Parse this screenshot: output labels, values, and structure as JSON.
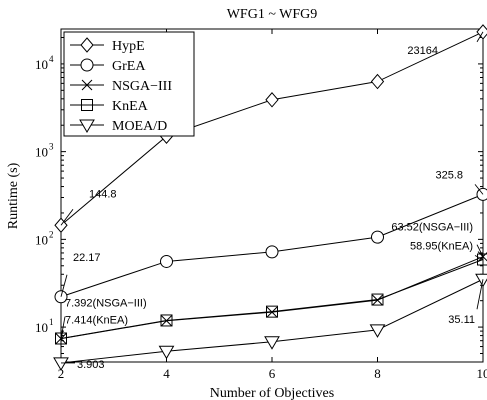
{
  "chart_data": {
    "type": "line",
    "title": "WFG1 ~ WFG9",
    "xlabel": "Number of Objectives",
    "ylabel": "Runtime (s)",
    "x": [
      2,
      4,
      6,
      8,
      10
    ],
    "xlim": [
      2,
      10
    ],
    "ylim": [
      4,
      25000
    ],
    "yscale": "log",
    "x_ticks": [
      "2",
      "4",
      "6",
      "8",
      "10"
    ],
    "y_ticks": [
      {
        "base": "10",
        "exp": "1",
        "value": 10
      },
      {
        "base": "10",
        "exp": "2",
        "value": 100
      },
      {
        "base": "10",
        "exp": "3",
        "value": 1000
      },
      {
        "base": "10",
        "exp": "4",
        "value": 10000
      }
    ],
    "legend_position": "top-left",
    "grid": false,
    "series": [
      {
        "name": "HypE",
        "marker": "diamond",
        "values": [
          144.8,
          1500,
          3900,
          6300,
          23164
        ]
      },
      {
        "name": "GrEA",
        "marker": "circle",
        "values": [
          22.17,
          56,
          72,
          106,
          325.8
        ]
      },
      {
        "name": "NSGA−III",
        "marker": "x",
        "values": [
          7.392,
          11.8,
          14.8,
          20.3,
          63.52
        ]
      },
      {
        "name": "KnEA",
        "marker": "square",
        "values": [
          7.414,
          11.9,
          15.0,
          20.6,
          58.95
        ]
      },
      {
        "name": "MOEA/D",
        "marker": "triangle-down",
        "values": [
          3.903,
          5.3,
          6.8,
          9.3,
          35.11
        ]
      }
    ],
    "annotations": [
      {
        "text": "144.8",
        "series": 0,
        "point": 0
      },
      {
        "text": "23164",
        "series": 0,
        "point": 4
      },
      {
        "text": "22.17",
        "series": 1,
        "point": 0
      },
      {
        "text": "325.8",
        "series": 1,
        "point": 4
      },
      {
        "text": "7.392(NSGA−III)",
        "series": 2,
        "point": 0
      },
      {
        "text": "7.414(KnEA)",
        "series": 3,
        "point": 0
      },
      {
        "text": "63.52(NSGA−III)",
        "series": 2,
        "point": 4
      },
      {
        "text": "58.95(KnEA)",
        "series": 3,
        "point": 4
      },
      {
        "text": "3.903",
        "series": 4,
        "point": 0
      },
      {
        "text": "35.11",
        "series": 4,
        "point": 4
      }
    ]
  }
}
